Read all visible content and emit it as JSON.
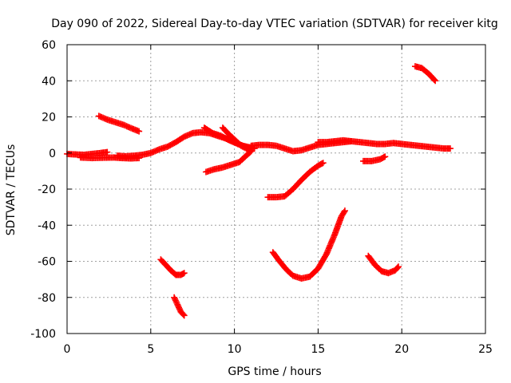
{
  "chart_data": {
    "type": "scatter",
    "title": "Day 090 of 2022, Sidereal Day-to-day VTEC variation (SDTVAR) for receiver kitg",
    "xlabel": "GPS time / hours",
    "ylabel": "SDTVAR / TECUs",
    "xlim": [
      0,
      25
    ],
    "ylim": [
      -100,
      60
    ],
    "xticks": [
      0,
      5,
      10,
      15,
      20,
      25
    ],
    "yticks": [
      -100,
      -80,
      -60,
      -40,
      -20,
      0,
      20,
      40,
      60
    ],
    "xtick_labels": [
      "0",
      "5",
      "10",
      "15",
      "20",
      "25"
    ],
    "ytick_labels": [
      "-100",
      "-80",
      "-60",
      "-40",
      "-20",
      "0",
      "20",
      "40",
      "60"
    ],
    "grid": true,
    "marker": "+",
    "color": "#ff0000",
    "series": [
      {
        "name": "s1",
        "points": [
          [
            0.0,
            -0.5
          ],
          [
            0.5,
            -0.8
          ],
          [
            1.0,
            -1.0
          ],
          [
            1.5,
            -0.5
          ],
          [
            2.0,
            0.0
          ],
          [
            2.4,
            0.5
          ]
        ]
      },
      {
        "name": "s2",
        "points": [
          [
            0.8,
            -2.5
          ],
          [
            1.5,
            -2.8
          ],
          [
            2.2,
            -2.6
          ],
          [
            2.8,
            -2.5
          ],
          [
            3.3,
            -2.8
          ],
          [
            3.8,
            -3.0
          ],
          [
            4.3,
            -2.8
          ]
        ]
      },
      {
        "name": "s3",
        "points": [
          [
            3.0,
            -1.5
          ],
          [
            3.5,
            -1.8
          ],
          [
            4.0,
            -1.5
          ],
          [
            4.5,
            -1.0
          ],
          [
            5.0,
            0.0
          ],
          [
            5.5,
            2.0
          ],
          [
            6.0,
            3.5
          ],
          [
            6.5,
            6.0
          ],
          [
            7.0,
            9.0
          ],
          [
            7.5,
            11.0
          ],
          [
            8.0,
            11.5
          ],
          [
            8.5,
            11.0
          ],
          [
            9.0,
            9.5
          ],
          [
            9.5,
            8.0
          ],
          [
            10.0,
            6.0
          ],
          [
            10.5,
            4.0
          ],
          [
            11.0,
            3.0
          ]
        ]
      },
      {
        "name": "s4",
        "points": [
          [
            1.9,
            20.5
          ],
          [
            2.4,
            18.5
          ],
          [
            2.9,
            17.0
          ],
          [
            3.4,
            15.5
          ],
          [
            3.9,
            13.5
          ],
          [
            4.3,
            12.0
          ]
        ]
      },
      {
        "name": "s5",
        "points": [
          [
            8.2,
            14.0
          ],
          [
            8.7,
            11.0
          ],
          [
            9.2,
            9.5
          ],
          [
            9.7,
            7.0
          ],
          [
            10.2,
            5.0
          ],
          [
            10.8,
            3.0
          ],
          [
            11.2,
            2.5
          ]
        ]
      },
      {
        "name": "s6",
        "points": [
          [
            9.3,
            14.0
          ],
          [
            9.6,
            11.0
          ],
          [
            10.0,
            7.5
          ],
          [
            10.4,
            4.0
          ],
          [
            10.8,
            2.0
          ],
          [
            11.0,
            1.5
          ]
        ]
      },
      {
        "name": "s7",
        "points": [
          [
            11.0,
            4.0
          ],
          [
            11.5,
            4.5
          ],
          [
            12.0,
            4.5
          ],
          [
            12.5,
            4.0
          ],
          [
            13.0,
            2.5
          ],
          [
            13.5,
            1.0
          ],
          [
            14.0,
            1.5
          ],
          [
            14.5,
            3.0
          ],
          [
            15.0,
            4.5
          ],
          [
            15.5,
            5.0
          ],
          [
            16.0,
            5.5
          ],
          [
            16.5,
            6.0
          ],
          [
            17.0,
            6.5
          ],
          [
            17.5,
            6.0
          ],
          [
            18.0,
            5.5
          ],
          [
            18.5,
            5.0
          ],
          [
            19.0,
            5.0
          ],
          [
            19.5,
            5.5
          ],
          [
            20.0,
            5.0
          ],
          [
            20.5,
            4.5
          ],
          [
            21.0,
            4.0
          ],
          [
            21.5,
            3.5
          ],
          [
            22.0,
            3.0
          ],
          [
            22.5,
            2.5
          ],
          [
            22.9,
            2.5
          ]
        ]
      },
      {
        "name": "s8",
        "points": [
          [
            15.0,
            6.0
          ],
          [
            15.5,
            6.0
          ],
          [
            16.0,
            6.5
          ],
          [
            16.5,
            7.0
          ],
          [
            17.0,
            6.5
          ]
        ]
      },
      {
        "name": "s9",
        "points": [
          [
            8.3,
            -10.5
          ],
          [
            8.8,
            -9.0
          ],
          [
            9.3,
            -8.0
          ],
          [
            9.8,
            -6.5
          ],
          [
            10.3,
            -5.0
          ],
          [
            10.7,
            -1.5
          ],
          [
            11.0,
            1.0
          ]
        ]
      },
      {
        "name": "s10",
        "points": [
          [
            12.0,
            -24.5
          ],
          [
            12.5,
            -24.5
          ],
          [
            13.0,
            -24.0
          ],
          [
            13.5,
            -20.0
          ],
          [
            14.0,
            -15.0
          ],
          [
            14.5,
            -10.5
          ],
          [
            15.0,
            -7.0
          ],
          [
            15.3,
            -5.5
          ]
        ]
      },
      {
        "name": "s11",
        "points": [
          [
            17.7,
            -4.5
          ],
          [
            18.2,
            -4.5
          ],
          [
            18.7,
            -3.5
          ],
          [
            19.0,
            -2.0
          ]
        ]
      },
      {
        "name": "s12",
        "points": [
          [
            20.8,
            48.0
          ],
          [
            21.2,
            47.0
          ],
          [
            21.6,
            44.0
          ],
          [
            22.0,
            40.0
          ]
        ]
      },
      {
        "name": "s13",
        "points": [
          [
            5.6,
            -59.0
          ],
          [
            5.9,
            -62.0
          ],
          [
            6.2,
            -65.0
          ],
          [
            6.5,
            -67.5
          ],
          [
            6.8,
            -67.5
          ],
          [
            7.0,
            -66.5
          ]
        ]
      },
      {
        "name": "s14",
        "points": [
          [
            6.4,
            -80.0
          ],
          [
            6.6,
            -84.0
          ],
          [
            6.8,
            -88.0
          ],
          [
            7.0,
            -90.0
          ]
        ]
      },
      {
        "name": "s15",
        "points": [
          [
            12.3,
            -55.0
          ],
          [
            12.7,
            -60.0
          ],
          [
            13.1,
            -64.5
          ],
          [
            13.5,
            -68.0
          ],
          [
            14.0,
            -69.5
          ],
          [
            14.5,
            -68.5
          ],
          [
            15.0,
            -64.0
          ],
          [
            15.5,
            -56.0
          ],
          [
            16.0,
            -45.0
          ],
          [
            16.4,
            -35.0
          ],
          [
            16.6,
            -32.0
          ]
        ]
      },
      {
        "name": "s16",
        "points": [
          [
            18.0,
            -57.0
          ],
          [
            18.4,
            -62.0
          ],
          [
            18.8,
            -65.5
          ],
          [
            19.2,
            -66.5
          ],
          [
            19.6,
            -65.0
          ],
          [
            19.8,
            -63.0
          ]
        ]
      }
    ]
  }
}
